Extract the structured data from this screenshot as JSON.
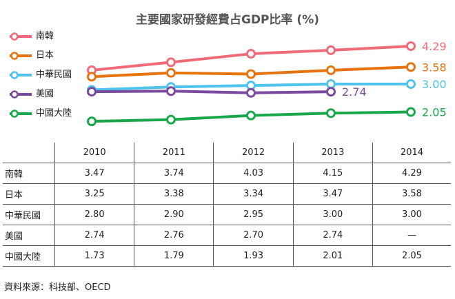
{
  "chart_data": {
    "type": "line",
    "title": "主要國家研發經費占GDP比率 (%)",
    "categories": [
      "2010",
      "2011",
      "2012",
      "2013",
      "2014"
    ],
    "ylim": [
      1.5,
      4.5
    ],
    "series": [
      {
        "name": "南韓",
        "color": "#ef6b78",
        "values": [
          3.47,
          3.74,
          4.03,
          4.15,
          4.29
        ],
        "end_label": "4.29"
      },
      {
        "name": "日本",
        "color": "#e5730f",
        "values": [
          3.25,
          3.38,
          3.34,
          3.47,
          3.58
        ],
        "end_label": "3.58"
      },
      {
        "name": "中華民國",
        "color": "#4fc3ec",
        "values": [
          2.8,
          2.9,
          2.95,
          3.0,
          3.0
        ],
        "end_label": "3.00"
      },
      {
        "name": "美國",
        "color": "#7b4a9e",
        "values": [
          2.74,
          2.76,
          2.7,
          2.74,
          null
        ],
        "end_label": "2.74"
      },
      {
        "name": "中國大陸",
        "color": "#18a84a",
        "values": [
          1.73,
          1.79,
          1.93,
          2.01,
          2.05
        ],
        "end_label": "2.05"
      }
    ],
    "table": {
      "header": [
        "2010",
        "2011",
        "2012",
        "2013",
        "2014"
      ],
      "rows": [
        {
          "name": "南韓",
          "cells": [
            "3.47",
            "3.74",
            "4.03",
            "4.15",
            "4.29"
          ]
        },
        {
          "name": "日本",
          "cells": [
            "3.25",
            "3.38",
            "3.34",
            "3.47",
            "3.58"
          ]
        },
        {
          "name": "中華民國",
          "cells": [
            "2.80",
            "2.90",
            "2.95",
            "3.00",
            "3.00"
          ]
        },
        {
          "name": "美國",
          "cells": [
            "2.74",
            "2.76",
            "2.70",
            "2.74",
            "—"
          ]
        },
        {
          "name": "中國大陸",
          "cells": [
            "1.73",
            "1.79",
            "1.93",
            "2.01",
            "2.05"
          ]
        }
      ]
    }
  },
  "source_note": "資料來源：科技部、OECD"
}
